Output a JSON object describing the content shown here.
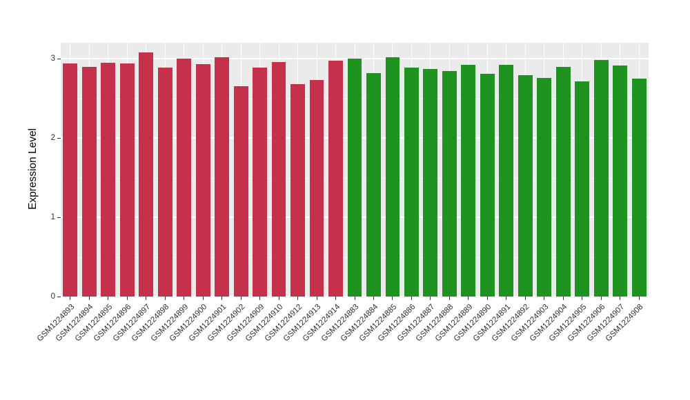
{
  "chart_data": {
    "type": "bar",
    "title": "",
    "xlabel": "",
    "ylabel": "Expression Level",
    "ylim": [
      0,
      3.2
    ],
    "yticks": [
      0,
      1,
      2,
      3
    ],
    "yticks_minor": [
      0.5,
      1.5,
      2.5
    ],
    "grid": "on",
    "legend": "none",
    "categories": [
      "GSM1224893",
      "GSM1224894",
      "GSM1224895",
      "GSM1224896",
      "GSM1224897",
      "GSM1224898",
      "GSM1224899",
      "GSM1224900",
      "GSM1224901",
      "GSM1224902",
      "GSM1224909",
      "GSM1224910",
      "GSM1224912",
      "GSM1224913",
      "GSM1224914",
      "GSM1224883",
      "GSM1224884",
      "GSM1224885",
      "GSM1224886",
      "GSM1224887",
      "GSM1224888",
      "GSM1224889",
      "GSM1224890",
      "GSM1224891",
      "GSM1224892",
      "GSM1224903",
      "GSM1224904",
      "GSM1224905",
      "GSM1224906",
      "GSM1224907",
      "GSM1224908"
    ],
    "values": [
      2.94,
      2.9,
      2.95,
      2.94,
      3.08,
      2.89,
      3.0,
      2.93,
      3.02,
      2.65,
      2.89,
      2.96,
      2.68,
      2.73,
      2.97,
      3.0,
      2.82,
      3.02,
      2.89,
      2.87,
      2.84,
      2.92,
      2.81,
      2.92,
      2.79,
      2.76,
      2.9,
      2.71,
      2.98,
      2.91,
      2.75
    ],
    "groups": [
      "A",
      "A",
      "A",
      "A",
      "A",
      "A",
      "A",
      "A",
      "A",
      "A",
      "A",
      "A",
      "A",
      "A",
      "A",
      "B",
      "B",
      "B",
      "B",
      "B",
      "B",
      "B",
      "B",
      "B",
      "B",
      "B",
      "B",
      "B",
      "B",
      "B",
      "B"
    ],
    "group_colors": {
      "A": "#C5314B",
      "B": "#1E9320"
    }
  },
  "style": {
    "panel_bg": "#EBEBEB",
    "grid_color": "#FFFFFF",
    "tick_color": "#333333",
    "label_color": "#303030"
  }
}
